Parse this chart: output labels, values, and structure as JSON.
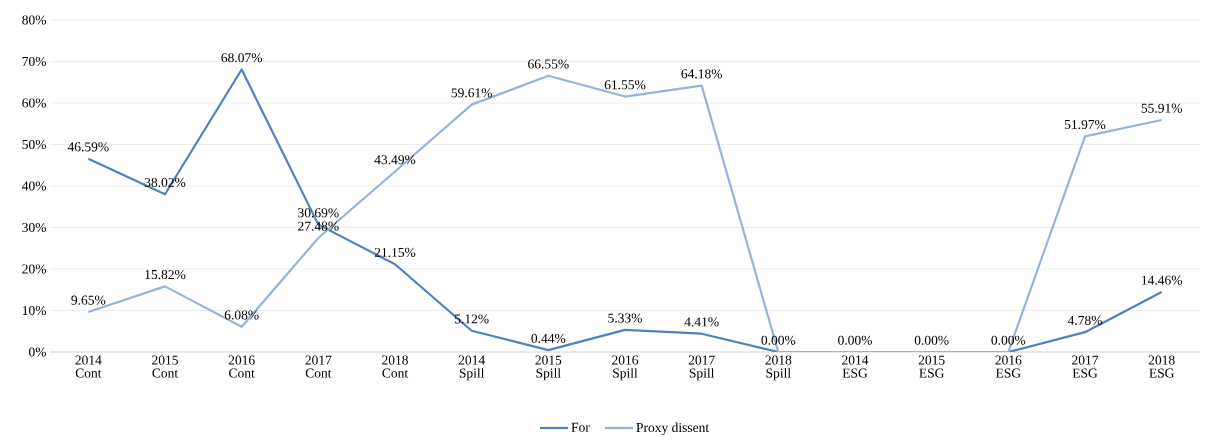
{
  "chart_data": {
    "type": "line",
    "categories": [
      "2014 Cont",
      "2015 Cont",
      "2016 Cont",
      "2017 Cont",
      "2018 Cont",
      "2014 Spill",
      "2015 Spill",
      "2016 Spill",
      "2017 Spill",
      "2018 Spill",
      "2014 ESG",
      "2015 ESG",
      "2016 ESG",
      "2017 ESG",
      "2018 ESG"
    ],
    "series": [
      {
        "name": "For",
        "color": "#4f81bd",
        "values": [
          46.59,
          38.02,
          68.07,
          30.69,
          21.15,
          5.12,
          0.44,
          5.33,
          4.41,
          0.0,
          0.0,
          0.0,
          0.0,
          4.78,
          14.46
        ],
        "value_labels": [
          "46.59%",
          "38.02%",
          "68.07%",
          "30.69%",
          "21.15%",
          "5.12%",
          "0.44%",
          "5.33%",
          "4.41%",
          "0.00%",
          "0.00%",
          "0.00%",
          "0.00%",
          "4.78%",
          "14.46%"
        ]
      },
      {
        "name": "Proxy dissent",
        "color": "#95b3d7",
        "values": [
          9.65,
          15.82,
          6.08,
          27.48,
          43.49,
          59.61,
          66.55,
          61.55,
          64.18,
          0.0,
          0.0,
          0.0,
          0.0,
          51.97,
          55.91
        ],
        "value_labels": [
          "9.65%",
          "15.82%",
          "6.08%",
          "27.48%",
          "43.49%",
          "59.61%",
          "66.55%",
          "61.55%",
          "64.18%",
          null,
          null,
          null,
          null,
          "51.97%",
          "55.91%"
        ]
      }
    ],
    "ylim": [
      0,
      80
    ],
    "yticks": [
      {
        "value": 0,
        "label": "0%"
      },
      {
        "value": 10,
        "label": "10%"
      },
      {
        "value": 20,
        "label": "20%"
      },
      {
        "value": 30,
        "label": "30%"
      },
      {
        "value": 40,
        "label": "40%"
      },
      {
        "value": 50,
        "label": "50%"
      },
      {
        "value": 60,
        "label": "60%"
      },
      {
        "value": 70,
        "label": "70%"
      },
      {
        "value": 80,
        "label": "80%"
      }
    ],
    "grid": "y",
    "legend": "bottom"
  }
}
